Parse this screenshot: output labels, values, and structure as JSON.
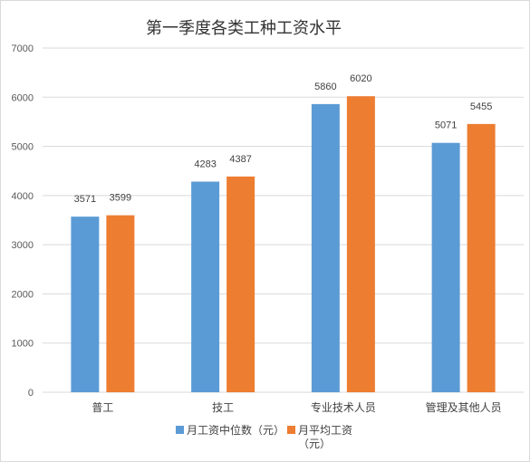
{
  "chart_data": {
    "type": "bar",
    "title": "第一季度各类工种工资水平",
    "categories": [
      "普工",
      "技工",
      "专业技术人员",
      "管理及其他人员"
    ],
    "series": [
      {
        "name": "月工资中位数（元）",
        "values": [
          3571,
          4283,
          5860,
          5071
        ],
        "color": "#5b9bd5"
      },
      {
        "name": "月平均工资（元）",
        "values": [
          3599,
          4387,
          6020,
          5455
        ],
        "color": "#ed7d31"
      }
    ],
    "ylim": [
      0,
      7000
    ],
    "yticks": [
      0,
      1000,
      2000,
      3000,
      4000,
      5000,
      6000,
      7000
    ],
    "grid": true,
    "legend": "bottom",
    "axis_color": "#d9d9d9",
    "grid_color": "#d9d9d9"
  }
}
